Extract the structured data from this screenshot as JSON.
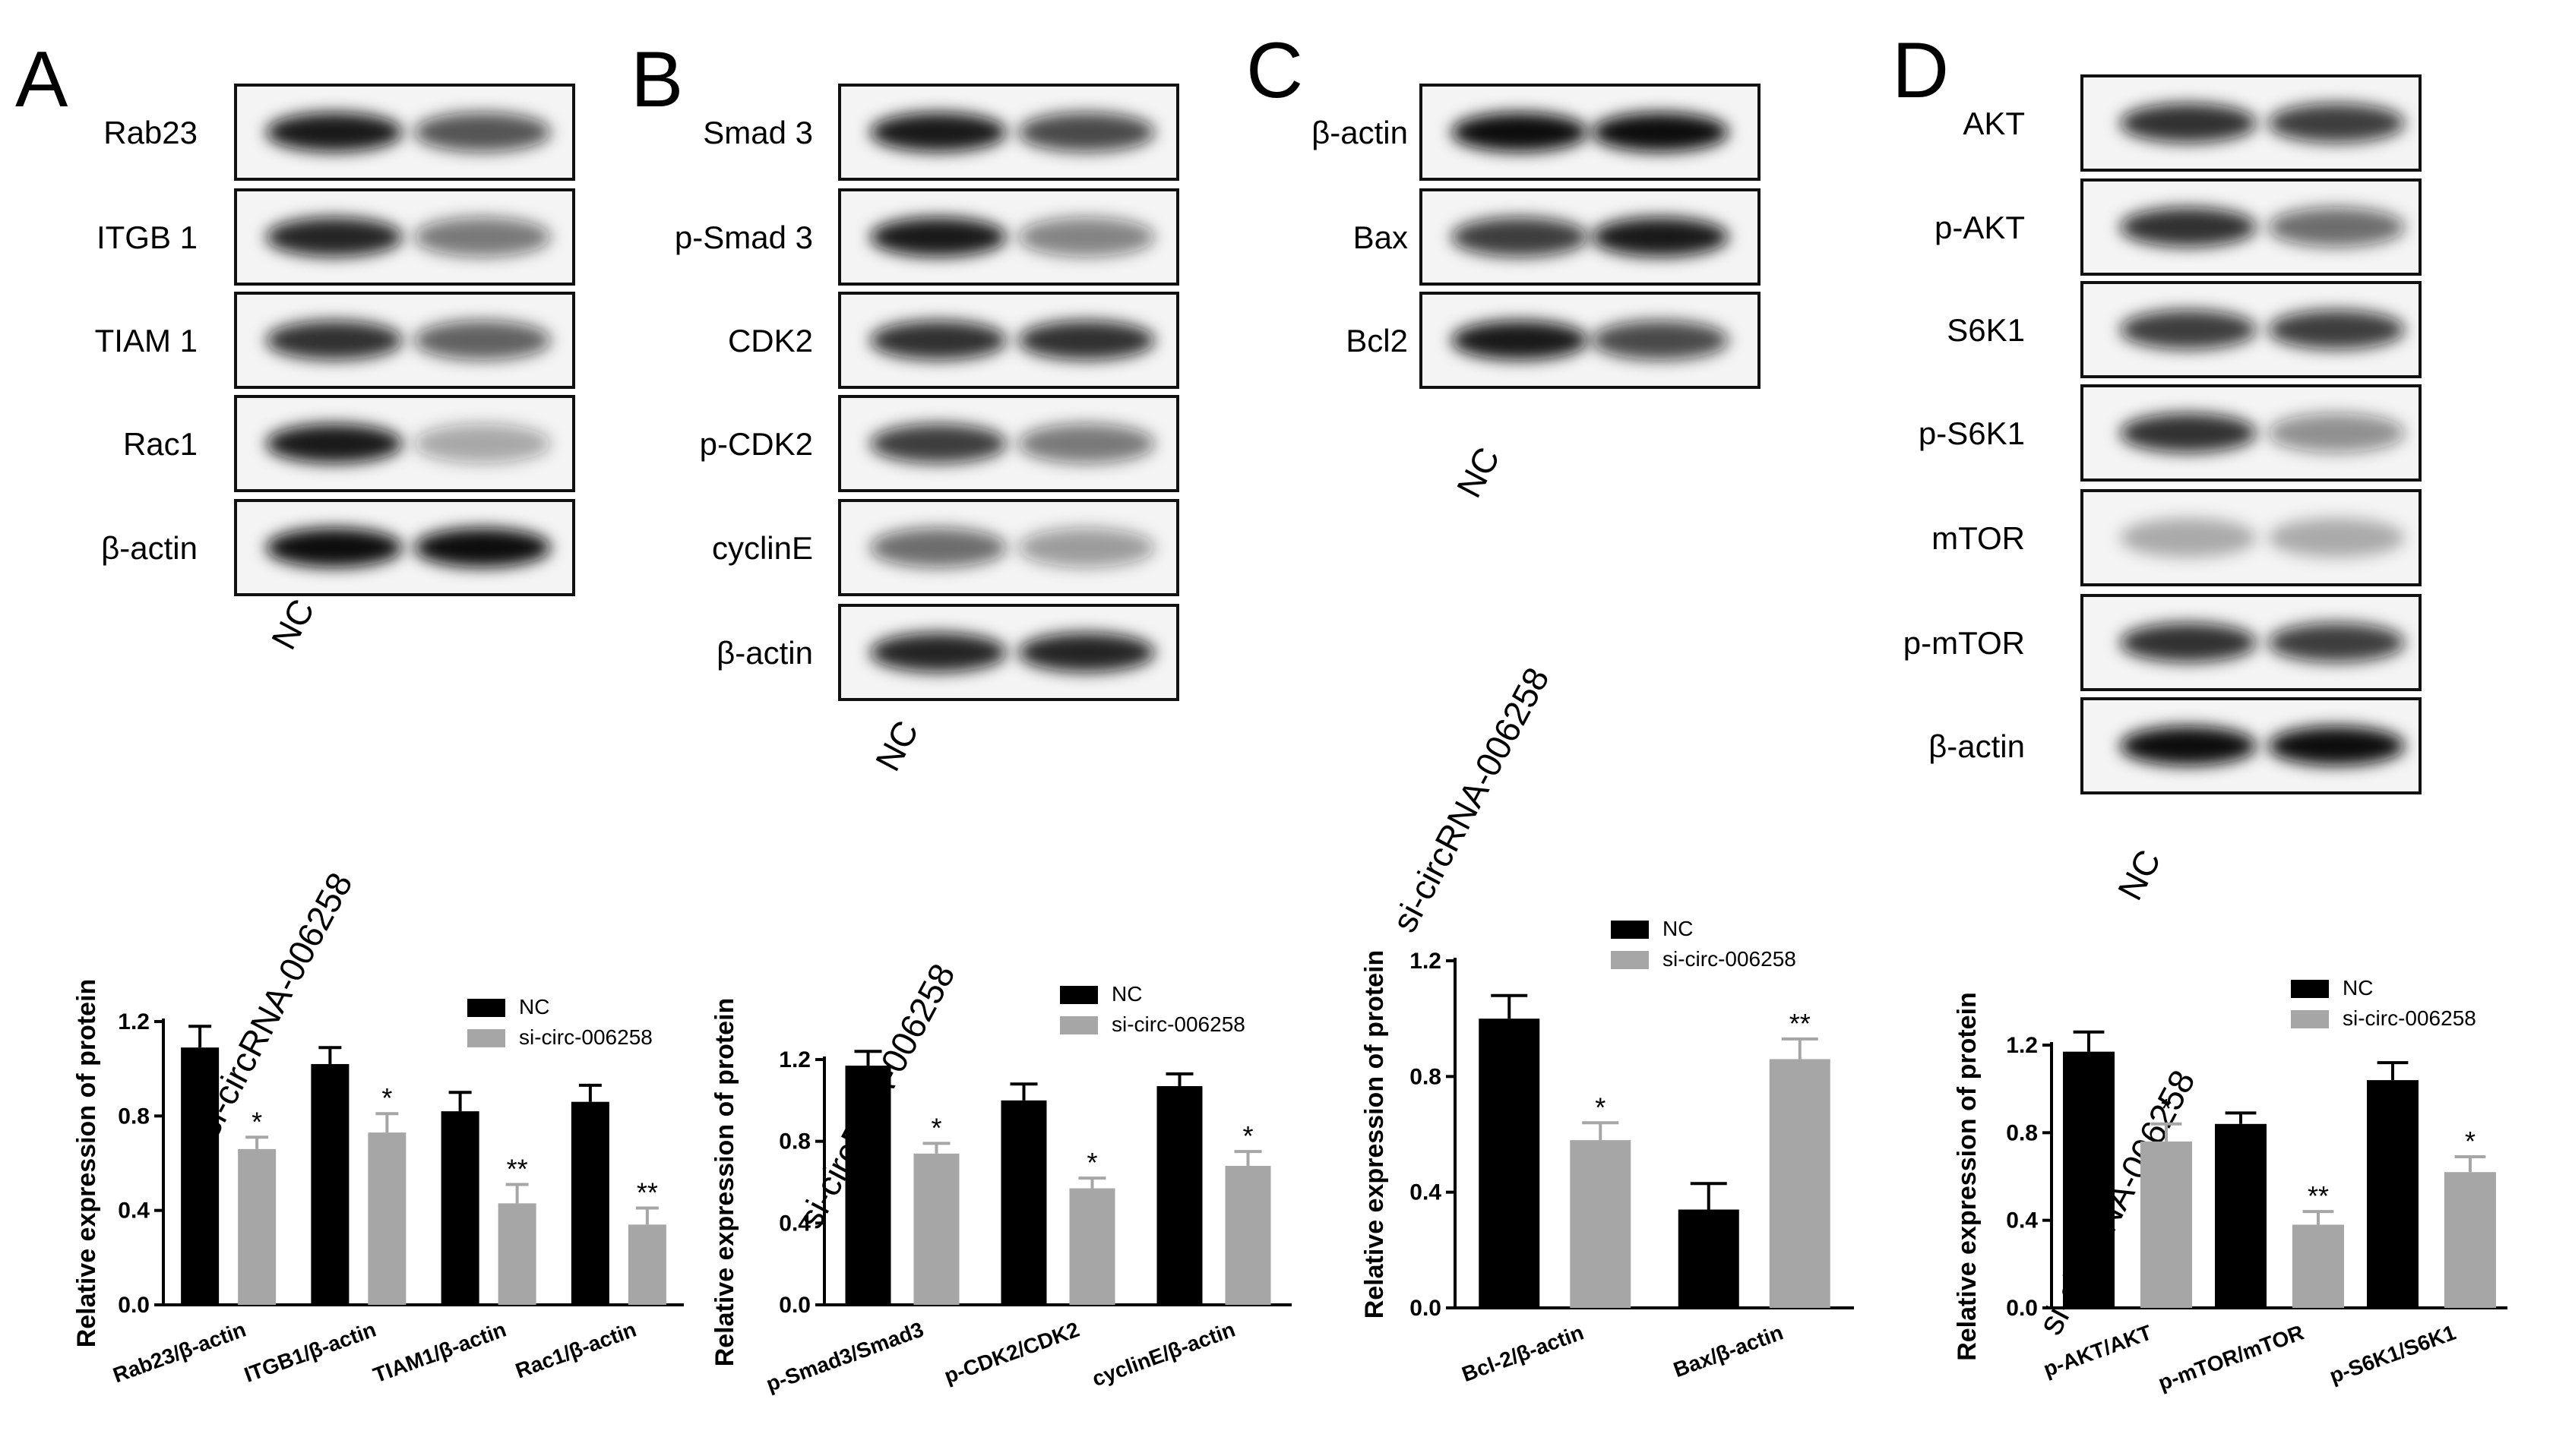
{
  "panels": [
    {
      "label": "A",
      "blot": {
        "proteins": [
          "Rab23",
          "ITGB 1",
          "TIAM 1",
          "Rac1",
          "β-actin"
        ],
        "lanes": [
          "NC",
          "si-circRNA-006258"
        ]
      },
      "chart_data": {
        "type": "bar",
        "ylabel": "Relative expression of protein",
        "ylim": [
          0,
          1.2
        ],
        "yticks": [
          "0.0",
          "0.4",
          "0.8",
          "1.2"
        ],
        "categories": [
          "Rab23/β-actin",
          "ITGB1/β-actin",
          "TIAM1/β-actin",
          "Rac1/β-actin"
        ],
        "series": [
          {
            "name": "NC",
            "color": "#000000",
            "values": [
              1.09,
              1.02,
              0.82,
              0.86
            ],
            "errors": [
              0.09,
              0.07,
              0.08,
              0.07
            ]
          },
          {
            "name": "si-circ-006258",
            "color": "#a6a6a6",
            "values": [
              0.66,
              0.73,
              0.43,
              0.34
            ],
            "errors": [
              0.05,
              0.08,
              0.08,
              0.07
            ]
          }
        ],
        "significance": [
          "*",
          "*",
          "**",
          "**"
        ]
      }
    },
    {
      "label": "B",
      "blot": {
        "proteins": [
          "Smad 3",
          "p-Smad 3",
          "CDK2",
          "p-CDK2",
          "cyclinE",
          "β-actin"
        ],
        "lanes": [
          "NC",
          "si-circRNA-006258"
        ]
      },
      "chart_data": {
        "type": "bar",
        "ylabel": "Relative expression of protein",
        "ylim": [
          0,
          1.2
        ],
        "yticks": [
          "0.0",
          "0.4",
          "0.8",
          "1.2"
        ],
        "categories": [
          "p-Smad3/Smad3",
          "p-CDK2/CDK2",
          "cyclinE/β-actin"
        ],
        "series": [
          {
            "name": "NC",
            "color": "#000000",
            "values": [
              1.17,
              1.0,
              1.07
            ],
            "errors": [
              0.07,
              0.08,
              0.06
            ]
          },
          {
            "name": "si-circ-006258",
            "color": "#a6a6a6",
            "values": [
              0.74,
              0.57,
              0.68
            ],
            "errors": [
              0.05,
              0.05,
              0.07
            ]
          }
        ],
        "significance": [
          "*",
          "*",
          "*"
        ]
      }
    },
    {
      "label": "C",
      "blot": {
        "proteins": [
          "β-actin",
          "Bax",
          "Bcl2"
        ],
        "lanes": [
          "NC",
          "si-circRNA-006258"
        ]
      },
      "chart_data": {
        "type": "bar",
        "ylabel": "Relative expression of protein",
        "ylim": [
          0,
          1.2
        ],
        "yticks": [
          "0.0",
          "0.4",
          "0.8",
          "1.2"
        ],
        "categories": [
          "Bcl-2/β-actin",
          "Bax/β-actin"
        ],
        "series": [
          {
            "name": "NC",
            "color": "#000000",
            "values": [
              1.0,
              0.34
            ],
            "errors": [
              0.08,
              0.09
            ]
          },
          {
            "name": "si-circ-006258",
            "color": "#a6a6a6",
            "values": [
              0.58,
              0.86
            ],
            "errors": [
              0.06,
              0.07
            ]
          }
        ],
        "significance": [
          "*",
          "**"
        ]
      }
    },
    {
      "label": "D",
      "blot": {
        "proteins": [
          "AKT",
          "p-AKT",
          "S6K1",
          "p-S6K1",
          "mTOR",
          "p-mTOR",
          "β-actin"
        ],
        "lanes": [
          "NC",
          "si-circRNA-006258"
        ]
      },
      "chart_data": {
        "type": "bar",
        "ylabel": "Relative expression of protein",
        "ylim": [
          0,
          1.2
        ],
        "yticks": [
          "0.0",
          "0.4",
          "0.8",
          "1.2"
        ],
        "categories": [
          "p-AKT/AKT",
          "p-mTOR/mTOR",
          "p-S6K1/S6K1"
        ],
        "series": [
          {
            "name": "NC",
            "color": "#000000",
            "values": [
              1.17,
              0.84,
              1.04
            ],
            "errors": [
              0.09,
              0.05,
              0.08
            ]
          },
          {
            "name": "si-circ-006258",
            "color": "#a6a6a6",
            "values": [
              0.76,
              0.38,
              0.62
            ],
            "errors": [
              0.08,
              0.06,
              0.07
            ]
          }
        ],
        "significance": [
          "*",
          "**",
          "*"
        ]
      }
    }
  ]
}
